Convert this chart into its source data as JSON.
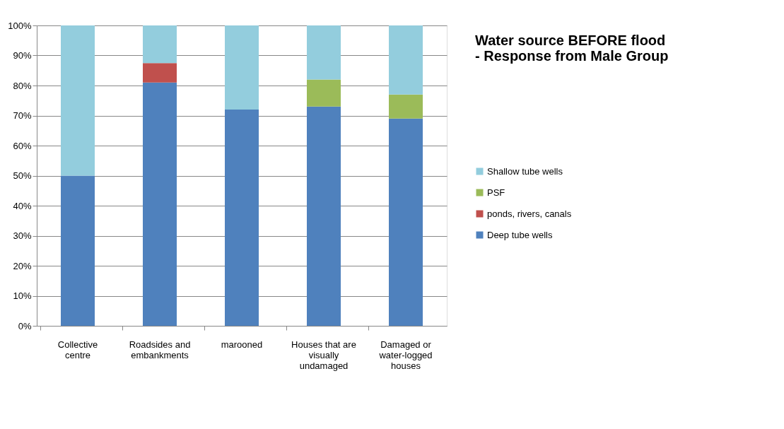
{
  "chart_data": {
    "type": "bar",
    "stacked": true,
    "title": "Water source BEFORE flood - Response from Male Group",
    "categories": [
      "Collective centre",
      "Roadsides and embankments",
      "marooned",
      "Houses that are visually undamaged",
      "Damaged or water-logged houses"
    ],
    "series": [
      {
        "name": "Deep tube wells",
        "color": "#4f81bd",
        "values": [
          50,
          81,
          72,
          73,
          69
        ]
      },
      {
        "name": "ponds, rivers, canals",
        "color": "#c0504d",
        "values": [
          0,
          6.5,
          0,
          0,
          0
        ]
      },
      {
        "name": "PSF",
        "color": "#9bbb59",
        "values": [
          0,
          0,
          0,
          9,
          8
        ]
      },
      {
        "name": "Shallow tube wells",
        "color": "#93cddd",
        "values": [
          50,
          12.5,
          28,
          18,
          23
        ]
      }
    ],
    "ylim": [
      0,
      100
    ],
    "yticks": [
      {
        "value": 0,
        "label": "0%"
      },
      {
        "value": 10,
        "label": "10%"
      },
      {
        "value": 20,
        "label": "20%"
      },
      {
        "value": 30,
        "label": "30%"
      },
      {
        "value": 40,
        "label": "40%"
      },
      {
        "value": 50,
        "label": "50%"
      },
      {
        "value": 60,
        "label": "60%"
      },
      {
        "value": 70,
        "label": "70%"
      },
      {
        "value": 80,
        "label": "80%"
      },
      {
        "value": 90,
        "label": "90%"
      },
      {
        "value": 100,
        "label": "100%"
      }
    ],
    "grid": "y",
    "legend": "right"
  }
}
